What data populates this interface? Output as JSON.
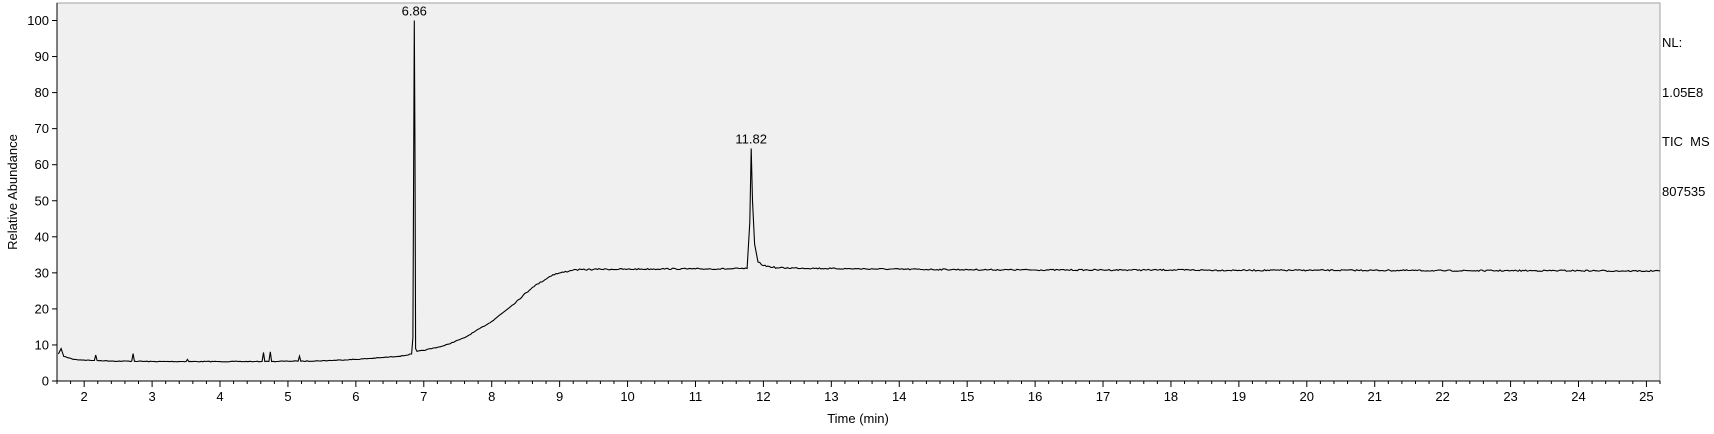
{
  "chart_data": {
    "type": "line",
    "title": "",
    "xlabel": "Time (min)",
    "ylabel": "Relative Abundance",
    "xlim": [
      1.6,
      25.2
    ],
    "ylim": [
      0,
      102
    ],
    "x_ticks": [
      2,
      3,
      4,
      5,
      6,
      7,
      8,
      9,
      10,
      11,
      12,
      13,
      14,
      15,
      16,
      17,
      18,
      19,
      20,
      21,
      22,
      23,
      24,
      25
    ],
    "y_ticks": [
      0,
      10,
      20,
      30,
      40,
      50,
      60,
      70,
      80,
      90,
      100
    ],
    "grid": false,
    "background_color": "#f0f0f0",
    "line_color": "#000000",
    "series": [
      {
        "x": [
          1.62,
          1.66,
          1.7,
          1.75,
          1.85,
          2.0,
          2.15,
          2.17,
          2.19,
          2.3,
          2.5,
          2.7,
          2.72,
          2.74,
          3.0,
          3.5,
          3.52,
          3.54,
          4.0,
          4.5,
          4.62,
          4.64,
          4.66,
          4.72,
          4.74,
          4.76,
          5.0,
          5.15,
          5.17,
          5.19,
          5.5,
          6.0,
          6.4,
          6.7,
          6.82,
          6.84,
          6.86,
          6.87,
          6.88,
          6.9,
          7.0,
          7.3,
          7.6,
          8.0,
          8.3,
          8.6,
          8.9,
          9.2,
          9.6,
          10.0,
          10.5,
          11.0,
          11.5,
          11.76,
          11.8,
          11.82,
          11.84,
          11.87,
          11.92,
          12.0,
          12.2,
          13.0,
          14.0,
          15.0,
          16.0,
          17.0,
          18.0,
          19.0,
          20.0,
          21.0,
          22.0,
          23.0,
          24.0,
          25.0,
          25.2
        ],
        "y": [
          7.5,
          9.0,
          6.8,
          6.5,
          6.0,
          5.8,
          5.7,
          7.2,
          5.7,
          5.6,
          5.5,
          5.5,
          7.6,
          5.5,
          5.4,
          5.4,
          6.0,
          5.4,
          5.4,
          5.4,
          5.4,
          7.9,
          5.4,
          5.4,
          8.1,
          5.4,
          5.5,
          5.5,
          6.9,
          5.5,
          5.6,
          6.0,
          6.5,
          7.0,
          7.5,
          12.0,
          100,
          63.0,
          9.0,
          8.2,
          8.5,
          9.8,
          12.0,
          16.5,
          21.0,
          26.0,
          29.5,
          30.8,
          31.0,
          31.0,
          31.1,
          31.1,
          31.1,
          31.2,
          44.0,
          64.5,
          50.0,
          38.0,
          33.0,
          32.0,
          31.4,
          31.2,
          31.0,
          30.9,
          30.8,
          30.8,
          30.8,
          30.7,
          30.7,
          30.7,
          30.6,
          30.6,
          30.6,
          30.5,
          30.5
        ]
      }
    ],
    "annotations": [
      {
        "x": 6.86,
        "y": 100,
        "text": "6.86"
      },
      {
        "x": 11.82,
        "y": 64.5,
        "text": "11.82"
      }
    ]
  },
  "info": {
    "line1": "NL:",
    "line2": "1.05E8",
    "line3": "TIC  MS",
    "line4": "807535"
  }
}
